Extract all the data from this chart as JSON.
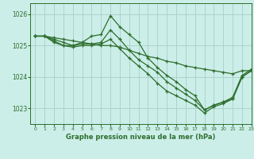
{
  "bg_color": "#cceee8",
  "grid_color": "#aad4cc",
  "line_color": "#2d6e2d",
  "title": "Graphe pression niveau de la mer (hPa)",
  "xlim": [
    -0.5,
    23
  ],
  "ylim": [
    1022.5,
    1026.35
  ],
  "yticks": [
    1023,
    1024,
    1025,
    1026
  ],
  "xticks": [
    0,
    1,
    2,
    3,
    4,
    5,
    6,
    7,
    8,
    9,
    10,
    11,
    12,
    13,
    14,
    15,
    16,
    17,
    18,
    19,
    20,
    21,
    22,
    23
  ],
  "series": [
    {
      "x": [
        0,
        1,
        2,
        3,
        4,
        5,
        6,
        7,
        8,
        9,
        10,
        11,
        12,
        13,
        14,
        15,
        16,
        17,
        18,
        19,
        20,
        21,
        22,
        23
      ],
      "y": [
        1025.3,
        1025.3,
        1025.25,
        1025.2,
        1025.15,
        1025.1,
        1025.05,
        1025.0,
        1025.0,
        1024.95,
        1024.85,
        1024.75,
        1024.65,
        1024.6,
        1024.5,
        1024.45,
        1024.35,
        1024.3,
        1024.25,
        1024.2,
        1024.15,
        1024.1,
        1024.2,
        1024.2
      ]
    },
    {
      "x": [
        0,
        1,
        2,
        3,
        4,
        5,
        6,
        7,
        8,
        9,
        10,
        11,
        12,
        13,
        14,
        15,
        16,
        17,
        18,
        19,
        20,
        21,
        22,
        23
      ],
      "y": [
        1025.3,
        1025.3,
        1025.2,
        1025.1,
        1025.0,
        1025.1,
        1025.3,
        1025.35,
        1025.95,
        1025.6,
        1025.35,
        1025.1,
        1024.6,
        1024.3,
        1024.05,
        1023.85,
        1023.6,
        1023.4,
        1022.95,
        1023.1,
        1023.2,
        1023.3,
        1024.0,
        1024.2
      ]
    },
    {
      "x": [
        0,
        1,
        2,
        3,
        4,
        5,
        6,
        7,
        8,
        9,
        10,
        11,
        12,
        13,
        14,
        15,
        16,
        17,
        18,
        19,
        20,
        21,
        22,
        23
      ],
      "y": [
        1025.3,
        1025.3,
        1025.15,
        1025.0,
        1025.0,
        1025.05,
        1025.05,
        1025.1,
        1025.5,
        1025.2,
        1024.85,
        1024.55,
        1024.35,
        1024.15,
        1023.85,
        1023.65,
        1023.45,
        1023.25,
        1022.95,
        1023.1,
        1023.2,
        1023.35,
        1024.05,
        1024.25
      ]
    },
    {
      "x": [
        0,
        1,
        2,
        3,
        4,
        5,
        6,
        7,
        8,
        9,
        10,
        11,
        12,
        13,
        14,
        15,
        16,
        17,
        18,
        19,
        20,
        21,
        22,
        23
      ],
      "y": [
        1025.3,
        1025.3,
        1025.1,
        1025.0,
        1024.95,
        1025.0,
        1025.0,
        1025.05,
        1025.2,
        1024.9,
        1024.6,
        1024.35,
        1024.1,
        1023.8,
        1023.55,
        1023.4,
        1023.25,
        1023.1,
        1022.85,
        1023.05,
        1023.15,
        1023.3,
        1024.0,
        1024.2
      ]
    }
  ]
}
